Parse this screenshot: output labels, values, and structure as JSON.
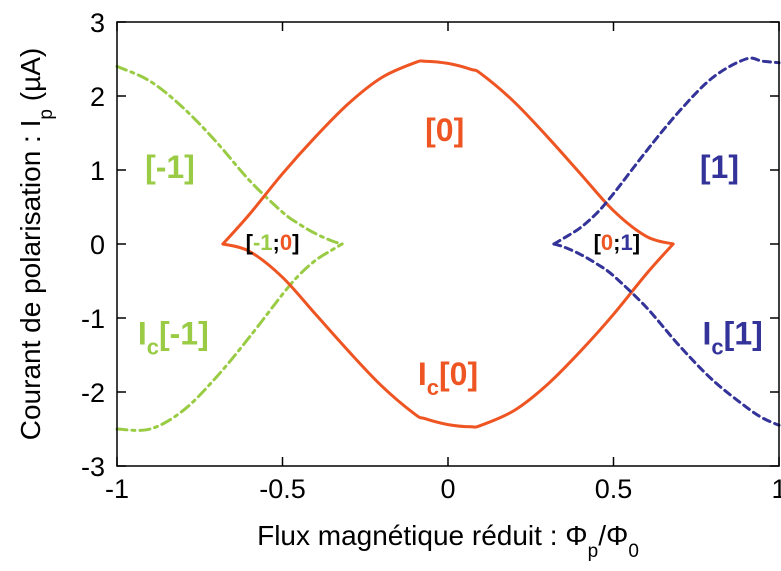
{
  "chart_data": {
    "type": "line",
    "title": "",
    "xlabel": {
      "main": "Flux magnétique réduit : Φ",
      "sub1": "p",
      "mid": "/Φ",
      "sub2": "0"
    },
    "ylabel": {
      "main": "Courant de polarisation : I",
      "sub": "p",
      "unit": " (µA)"
    },
    "xlim": [
      -1,
      1
    ],
    "ylim": [
      -3,
      3
    ],
    "xticks": [
      -1,
      -0.5,
      0,
      0.5,
      1
    ],
    "xtick_labels": [
      "-1",
      "-0.5",
      "0",
      "0.5",
      "1"
    ],
    "yticks": [
      3,
      2,
      1,
      0,
      -1,
      -2,
      -3
    ],
    "ytick_labels": [
      "3",
      "2",
      "1",
      "0",
      "-1",
      "-2",
      "-3"
    ],
    "grid": false,
    "series": [
      {
        "key": "branch_m1",
        "color": "#99cc44",
        "dash": "dashdot",
        "x": [
          -1,
          -0.9,
          -0.8,
          -0.7,
          -0.6,
          -0.5,
          -0.45,
          -0.4,
          -0.35,
          -0.32
        ],
        "upper": [
          2.4,
          2.2,
          1.84,
          1.38,
          0.86,
          0.43,
          0.27,
          0.14,
          0.04,
          0.0
        ],
        "lower": [
          -2.5,
          -2.5,
          -2.25,
          -1.8,
          -1.26,
          -0.68,
          -0.42,
          -0.22,
          -0.08,
          0.0
        ]
      },
      {
        "key": "branch_0",
        "color": "#ee5522",
        "dash": "solid",
        "x": [
          -0.68,
          -0.6,
          -0.5,
          -0.4,
          -0.3,
          -0.2,
          -0.1,
          -0.07,
          0.0,
          0.07,
          0.1,
          0.2,
          0.3,
          0.4,
          0.5,
          0.6,
          0.68
        ],
        "upper": [
          0.0,
          0.4,
          0.95,
          1.45,
          1.9,
          2.25,
          2.45,
          2.47,
          2.44,
          2.36,
          2.3,
          1.92,
          1.45,
          0.95,
          0.45,
          0.1,
          0.0
        ],
        "lower": [
          0.0,
          -0.1,
          -0.45,
          -0.95,
          -1.45,
          -1.92,
          -2.3,
          -2.36,
          -2.44,
          -2.47,
          -2.45,
          -2.25,
          -1.9,
          -1.45,
          -0.95,
          -0.4,
          0.0
        ]
      },
      {
        "key": "branch_p1",
        "color": "#333399",
        "dash": "dashed",
        "x": [
          0.32,
          0.35,
          0.4,
          0.45,
          0.5,
          0.6,
          0.7,
          0.8,
          0.9,
          0.95,
          1.0
        ],
        "upper": [
          0.0,
          0.08,
          0.22,
          0.42,
          0.68,
          1.26,
          1.8,
          2.25,
          2.5,
          2.47,
          2.45
        ],
        "lower": [
          0.0,
          -0.04,
          -0.14,
          -0.27,
          -0.43,
          -0.86,
          -1.38,
          -1.84,
          -2.2,
          -2.35,
          -2.45
        ]
      }
    ],
    "annotations": [
      {
        "key": "a1",
        "text": "[0]",
        "x": -0.01,
        "y": 1.5,
        "color": "#ee5522"
      },
      {
        "key": "a2",
        "text": "[-1]",
        "x": -0.84,
        "y": 1.0,
        "color": "#99cc44"
      },
      {
        "key": "a3",
        "text": "[1]",
        "x": 0.82,
        "y": 1.0,
        "color": "#333399"
      },
      {
        "key": "a4",
        "text": "I",
        "sub": "c",
        "tail": "[-1]",
        "x": -0.83,
        "y": -1.25,
        "color": "#99cc44"
      },
      {
        "key": "a5",
        "text": "I",
        "sub": "c",
        "tail": "[0]",
        "x": 0.0,
        "y": -1.8,
        "color": "#ee5522"
      },
      {
        "key": "a6",
        "text": "I",
        "sub": "c",
        "tail": "[1]",
        "x": 0.86,
        "y": -1.25,
        "color": "#333399"
      },
      {
        "key": "a7",
        "parts": [
          {
            "t": "[",
            "c": "#000000"
          },
          {
            "t": "-1",
            "c": "#99cc44"
          },
          {
            "t": ";",
            "c": "#000000"
          },
          {
            "t": "0",
            "c": "#ee5522"
          },
          {
            "t": "]",
            "c": "#000000"
          }
        ],
        "x": -0.53,
        "y": 0.0
      },
      {
        "key": "a8",
        "parts": [
          {
            "t": "[",
            "c": "#000000"
          },
          {
            "t": "0",
            "c": "#ee5522"
          },
          {
            "t": ";",
            "c": "#000000"
          },
          {
            "t": "1",
            "c": "#333399"
          },
          {
            "t": "]",
            "c": "#000000"
          }
        ],
        "x": 0.51,
        "y": 0.0
      }
    ]
  }
}
